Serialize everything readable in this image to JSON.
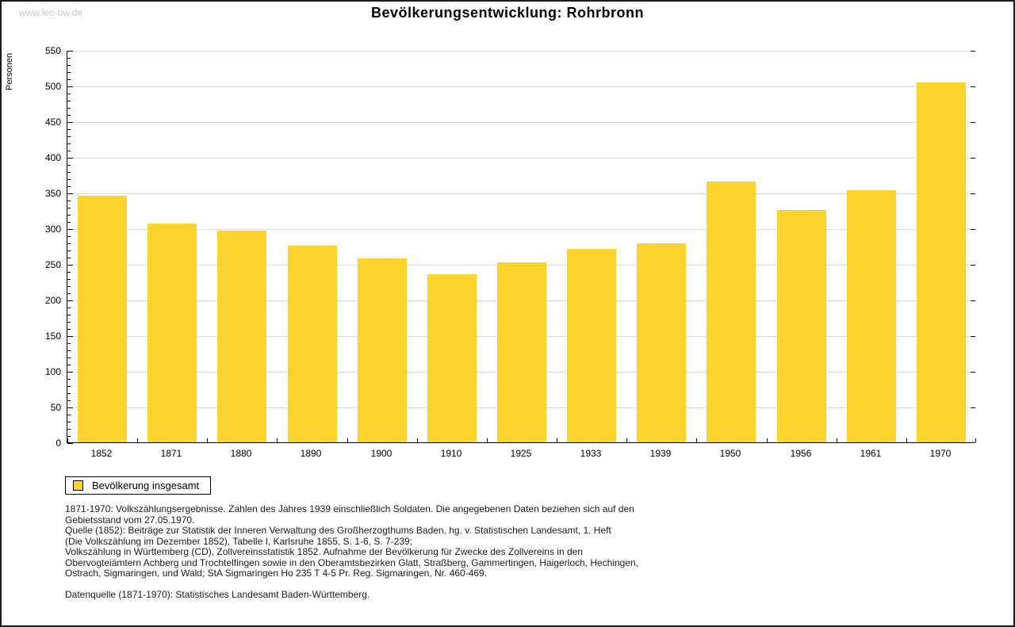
{
  "watermark": "www.leo-bw.de",
  "title": "Bevölkerungsentwicklung: Rohrbronn",
  "chart_data": {
    "type": "bar",
    "title": "Bevölkerungsentwicklung: Rohrbronn",
    "xlabel": "",
    "ylabel": "Personen",
    "categories": [
      "1852",
      "1871",
      "1880",
      "1890",
      "1900",
      "1910",
      "1925",
      "1933",
      "1939",
      "1950",
      "1956",
      "1961",
      "1970"
    ],
    "values": [
      346,
      307,
      297,
      275,
      258,
      236,
      252,
      271,
      279,
      366,
      326,
      353,
      504
    ],
    "series_name": "Bevölkerung insgesamt",
    "ylim": [
      0,
      550
    ],
    "yticks": [
      0,
      50,
      100,
      150,
      200,
      250,
      300,
      350,
      400,
      450,
      500,
      550
    ],
    "minor_tick_step": 10,
    "grid": true,
    "bar_color": "#fdd32d",
    "legend_position": "bottom-left"
  },
  "legend": {
    "label": "Bevölkerung insgesamt",
    "swatch_color": "#fdd32d"
  },
  "footnotes": [
    "1871-1970: Volkszählungsergebnisse. Zahlen des Jahres 1939 einschließlich Soldaten. Die angegebenen Daten beziehen sich auf den",
    "Gebietsstand vom 27.05.1970.",
    "Quelle (1852): Beiträge zur Statistik der Inneren Verwaltung des Großherzogthums Baden, hg. v. Statistischen Landesamt, 1. Heft",
    "(Die Volkszählung im Dezember 1852), Tabelle I, Karlsruhe 1855, S. 1-6, S. 7-239;",
    "Volkszählung in Württemberg (CD), Zollvereinsstatistik 1852. Aufnahme der Bevölkerung für Zwecke des Zollvereins in den",
    "Obervogteiämtern Achberg und Trochtelfingen sowie in den Oberamtsbezirken Glatt, Straßberg, Gammertingen, Haigerloch, Hechingen,",
    "Ostrach, Sigmaringen, und Wald; StA Sigmaringen Ho 235 T 4-5 Pr. Reg. Sigmaringen, Nr. 460-469."
  ],
  "datasource": "Datenquelle (1871-1970): Statistisches Landesamt Baden-Württemberg."
}
